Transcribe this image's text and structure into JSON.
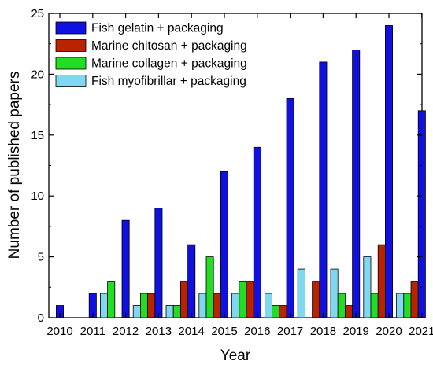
{
  "chart_data": {
    "type": "bar",
    "title": "",
    "xlabel": "Year",
    "ylabel": "Number of published papers",
    "ylim": [
      0,
      25
    ],
    "yticks": [
      0,
      5,
      10,
      15,
      20,
      25
    ],
    "grid": false,
    "legend_position": "top-left",
    "categories": [
      "2010",
      "2011",
      "2012",
      "2013",
      "2014",
      "2015",
      "2016",
      "2017",
      "2018",
      "2019",
      "2020",
      "2021"
    ],
    "series": [
      {
        "name": "Fish myofibrillar + packaging",
        "color": "#80d8f0",
        "values": [
          0,
          0,
          2,
          1,
          1,
          2,
          2,
          2,
          4,
          4,
          5,
          2
        ]
      },
      {
        "name": "Marine collagen + packaging",
        "color": "#22dd22",
        "values": [
          0,
          0,
          3,
          2,
          1,
          5,
          3,
          1,
          0,
          2,
          2,
          2
        ]
      },
      {
        "name": "Marine chitosan + packaging",
        "color": "#bb2200",
        "values": [
          0,
          0,
          0,
          2,
          3,
          2,
          3,
          1,
          3,
          1,
          6,
          3
        ]
      },
      {
        "name": "Fish gelatin + packaging",
        "color": "#1010e0",
        "values": [
          1,
          2,
          8,
          9,
          6,
          12,
          14,
          18,
          21,
          22,
          24,
          17
        ]
      }
    ],
    "legend_order": [
      "Fish gelatin + packaging",
      "Marine chitosan + packaging",
      "Marine collagen + packaging",
      "Fish myofibrillar + packaging"
    ]
  }
}
